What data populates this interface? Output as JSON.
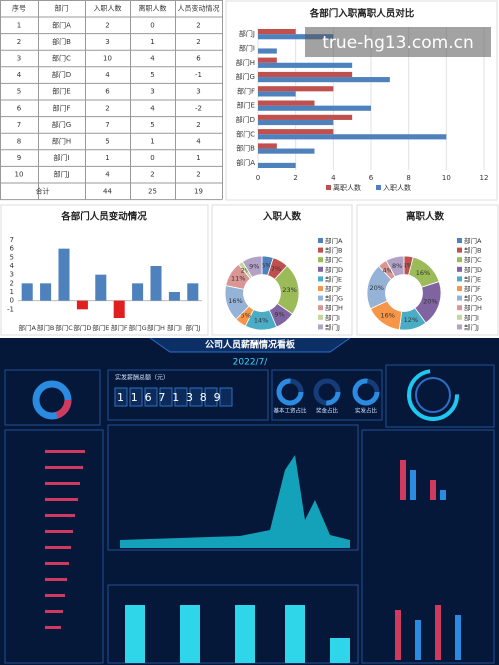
{
  "table": {
    "header": [
      "序号",
      "部门",
      "入职人数",
      "离职人数",
      "人员变动情况"
    ],
    "rows": [
      [
        1,
        "部门A",
        2,
        0,
        2
      ],
      [
        2,
        "部门B",
        3,
        1,
        2
      ],
      [
        3,
        "部门C",
        10,
        4,
        6
      ],
      [
        4,
        "部门D",
        4,
        5,
        -1
      ],
      [
        5,
        "部门E",
        6,
        3,
        3
      ],
      [
        6,
        "部门F",
        2,
        4,
        -2
      ],
      [
        7,
        "部门G",
        7,
        5,
        2
      ],
      [
        8,
        "部门H",
        5,
        1,
        4
      ],
      [
        9,
        "部门I",
        1,
        0,
        1
      ],
      [
        10,
        "部门J",
        4,
        2,
        2
      ]
    ],
    "total": [
      "合计",
      44,
      25,
      19
    ]
  },
  "chart_data": [
    {
      "type": "bar",
      "orientation": "horizontal",
      "title": "各部门入职离职人员对比",
      "categories": [
        "部门J",
        "部门I",
        "部门H",
        "部门G",
        "部门F",
        "部门E",
        "部门D",
        "部门C",
        "部门B",
        "部门A"
      ],
      "series": [
        {
          "name": "离职人数",
          "color": "#c0504d",
          "values": [
            2,
            0,
            1,
            5,
            4,
            3,
            5,
            4,
            1,
            0
          ]
        },
        {
          "name": "入职人数",
          "color": "#4f81bd",
          "values": [
            4,
            1,
            5,
            7,
            2,
            6,
            4,
            10,
            3,
            2
          ]
        }
      ],
      "xlim": [
        0,
        12
      ],
      "xticks": [
        0,
        2,
        4,
        6,
        8,
        10,
        12
      ],
      "grid": true,
      "legend": "bottom"
    },
    {
      "type": "bar",
      "title": "各部门人员变动情况",
      "categories": [
        "部门A",
        "部门B",
        "部门C",
        "部门D",
        "部门E",
        "部门F",
        "部门G",
        "部门H",
        "部门I",
        "部门J"
      ],
      "values": [
        2,
        2,
        6,
        -1,
        3,
        -2,
        2,
        4,
        1,
        2
      ],
      "color": "#4f81bd",
      "negative_color": "#e02020",
      "ylim": [
        -2,
        7
      ],
      "yticks": [
        -1,
        0,
        1,
        2,
        3,
        4,
        5,
        6,
        7
      ]
    },
    {
      "type": "pie",
      "donut": true,
      "title": "入职人数",
      "categories": [
        "部门A",
        "部门B",
        "部门C",
        "部门D",
        "部门E",
        "部门F",
        "部门G",
        "部门H",
        "部门I",
        "部门J"
      ],
      "values": [
        5,
        7,
        23,
        9,
        14,
        5,
        16,
        11,
        2,
        9
      ],
      "value_labels": [
        "5%",
        "7%",
        "23%",
        "9%",
        "14%",
        "5%",
        "16%",
        "11%",
        "2%",
        "9%"
      ],
      "colors": [
        "#4f81bd",
        "#c0504d",
        "#9bbb59",
        "#8064a2",
        "#4bacc6",
        "#f79646",
        "#95b3d7",
        "#d99694",
        "#c3d69b",
        "#b3a2c7"
      ],
      "legend": "right"
    },
    {
      "type": "pie",
      "donut": true,
      "title": "离职人数",
      "categories": [
        "部门A",
        "部门B",
        "部门C",
        "部门D",
        "部门E",
        "部门F",
        "部门G",
        "部门H",
        "部门I",
        "部门J"
      ],
      "values": [
        0,
        4,
        16,
        20,
        12,
        16,
        20,
        4,
        0,
        8
      ],
      "value_labels": [
        "0%",
        "4%",
        "16%",
        "20%",
        "12%",
        "16%",
        "20%",
        "4%",
        "0%",
        "8%"
      ],
      "colors": [
        "#4f81bd",
        "#c0504d",
        "#9bbb59",
        "#8064a2",
        "#4bacc6",
        "#f79646",
        "#95b3d7",
        "#d99694",
        "#c3d69b",
        "#b3a2c7"
      ],
      "legend": "right"
    }
  ],
  "dashboard": {
    "title": "公司人员薪酬情况看板",
    "date": "2022/7/",
    "total_label": "实发薪酬总额（元）",
    "total": "11671389",
    "gauges": [
      "基本工资占比",
      "奖金占比",
      "实发占比"
    ]
  },
  "watermark": "true-hg13.com.cn"
}
